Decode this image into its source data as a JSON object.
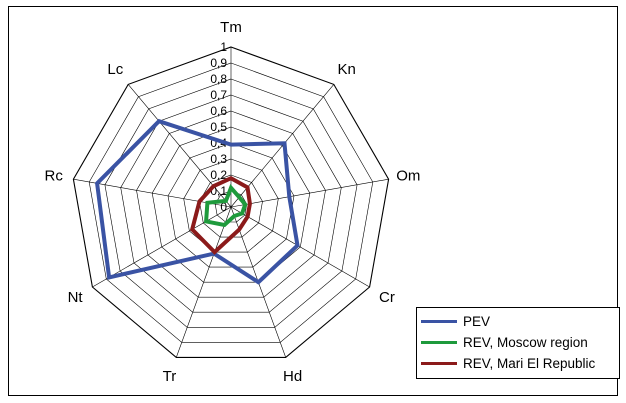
{
  "chart_data": {
    "type": "radar",
    "categories": [
      "Tm",
      "Kn",
      "Om",
      "Cr",
      "Hd",
      "Tr",
      "Nt",
      "Rc",
      "Lc"
    ],
    "rlim": [
      0,
      1
    ],
    "tick_labels": [
      "0",
      "0,1",
      "0,2",
      "0,3",
      "0,4",
      "0,5",
      "0,6",
      "0,7",
      "0,8",
      "0,9",
      "1"
    ],
    "grid": true,
    "legend_position": "bottom-right",
    "series": [
      {
        "name": "PEV",
        "color": "#3a53a4",
        "values": [
          0.39,
          0.52,
          0.37,
          0.48,
          0.5,
          0.31,
          0.88,
          0.85,
          0.7
        ]
      },
      {
        "name": "REV, Moscow region",
        "color": "#1e9a3c",
        "values": [
          0.12,
          0.08,
          0.09,
          0.08,
          0.06,
          0.12,
          0.18,
          0.15,
          0.05
        ]
      },
      {
        "name": "REV, Mari El Republic",
        "color": "#8b1a1a",
        "values": [
          0.18,
          0.16,
          0.12,
          0.12,
          0.15,
          0.3,
          0.28,
          0.2,
          0.17
        ]
      }
    ]
  }
}
